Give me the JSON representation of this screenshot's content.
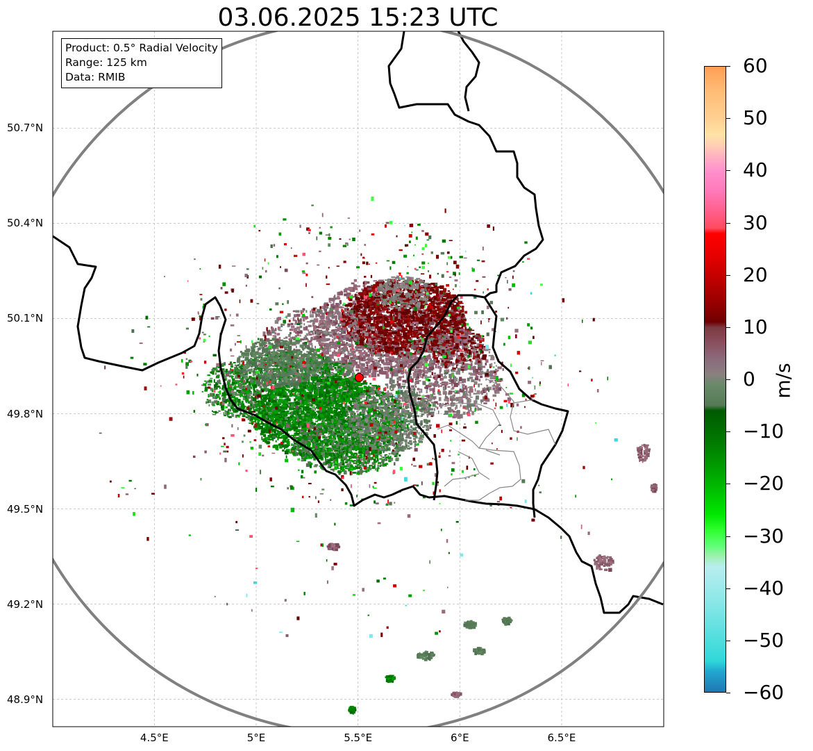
{
  "title": "03.06.2025 15:23 UTC",
  "infobox": {
    "line1": "Product: 0.5° Radial Velocity",
    "line2": "Range: 125 km",
    "line3": "Data: RMIB"
  },
  "map": {
    "lon_range": [
      4.0,
      7.0
    ],
    "lat_range": [
      48.8,
      51.0
    ],
    "x_ticks": [
      {
        "value": 4.5,
        "label": "4.5°E"
      },
      {
        "value": 5.0,
        "label": "5°E"
      },
      {
        "value": 5.5,
        "label": "5.5°E"
      },
      {
        "value": 6.0,
        "label": "6°E"
      },
      {
        "value": 6.5,
        "label": "6.5°E"
      }
    ],
    "y_ticks": [
      {
        "value": 50.7,
        "label": "50.7°N"
      },
      {
        "value": 50.4,
        "label": "50.4°N"
      },
      {
        "value": 50.1,
        "label": "50.1°N"
      },
      {
        "value": 49.8,
        "label": "49.8°N"
      },
      {
        "value": 49.5,
        "label": "49.5°N"
      },
      {
        "value": 49.2,
        "label": "49.2°N"
      },
      {
        "value": 48.9,
        "label": "48.9°N"
      }
    ],
    "grid": true,
    "radar_site": {
      "lon": 5.506,
      "lat": 49.914
    },
    "range_ring_km": 125
  },
  "colorbar": {
    "label": "m/s",
    "range": [
      -60,
      60
    ],
    "ticks": [
      {
        "value": 60,
        "label": "60"
      },
      {
        "value": 50,
        "label": "50"
      },
      {
        "value": 40,
        "label": "40"
      },
      {
        "value": 30,
        "label": "30"
      },
      {
        "value": 20,
        "label": "20"
      },
      {
        "value": 10,
        "label": "10"
      },
      {
        "value": 0,
        "label": "0"
      },
      {
        "value": -10,
        "label": "−10"
      },
      {
        "value": -20,
        "label": "−20"
      },
      {
        "value": -30,
        "label": "−30"
      },
      {
        "value": -40,
        "label": "−40"
      },
      {
        "value": -50,
        "label": "−50"
      },
      {
        "value": -60,
        "label": "−60"
      }
    ],
    "stops": [
      {
        "value": 60,
        "color": "#ff9e55"
      },
      {
        "value": 55,
        "color": "#ffbe78"
      },
      {
        "value": 50,
        "color": "#ffd092"
      },
      {
        "value": 47,
        "color": "#ffe3a5"
      },
      {
        "value": 45,
        "color": "#ffd0b4"
      },
      {
        "value": 43,
        "color": "#ffb4c0"
      },
      {
        "value": 40,
        "color": "#ff90cc"
      },
      {
        "value": 36,
        "color": "#ff78b8"
      },
      {
        "value": 32,
        "color": "#ff5e88"
      },
      {
        "value": 29,
        "color": "#ff4a60"
      },
      {
        "value": 28,
        "color": "#ff0000"
      },
      {
        "value": 24,
        "color": "#e80000"
      },
      {
        "value": 20,
        "color": "#c60000"
      },
      {
        "value": 15,
        "color": "#9a0000"
      },
      {
        "value": 11,
        "color": "#700000"
      },
      {
        "value": 10,
        "color": "#7a3a40"
      },
      {
        "value": 7,
        "color": "#8a5060"
      },
      {
        "value": 4,
        "color": "#8a6a7a"
      },
      {
        "value": 1,
        "color": "#8a8080"
      },
      {
        "value": -1,
        "color": "#6a8a6a"
      },
      {
        "value": -5,
        "color": "#557a55"
      },
      {
        "value": -6,
        "color": "#005a00"
      },
      {
        "value": -12,
        "color": "#007a00"
      },
      {
        "value": -20,
        "color": "#00b400"
      },
      {
        "value": -26,
        "color": "#00e800"
      },
      {
        "value": -29,
        "color": "#30ff30"
      },
      {
        "value": -32,
        "color": "#60ff78"
      },
      {
        "value": -34,
        "color": "#a0f0b0"
      },
      {
        "value": -36,
        "color": "#b8eef0"
      },
      {
        "value": -42,
        "color": "#90e8e8"
      },
      {
        "value": -48,
        "color": "#60e0e0"
      },
      {
        "value": -54,
        "color": "#30d8d8"
      },
      {
        "value": -56,
        "color": "#20a8d0"
      },
      {
        "value": -60,
        "color": "#1f77b4"
      }
    ]
  },
  "colors": {
    "ring": "#808080",
    "grid": "#bbbbbb",
    "border": "#000000",
    "admin": "#888888",
    "site": "#ff0000"
  }
}
